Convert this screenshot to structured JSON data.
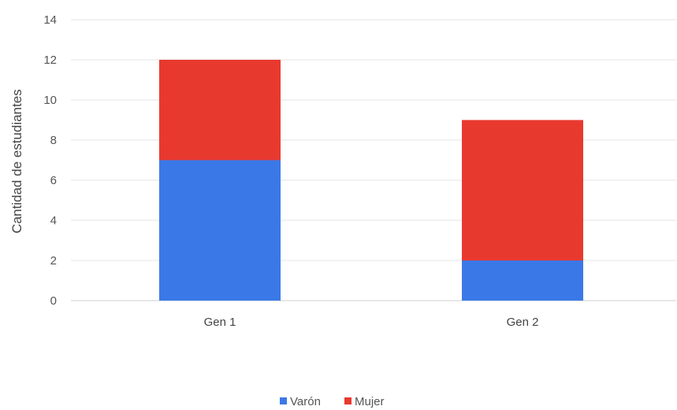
{
  "chart_data": {
    "type": "bar",
    "stacked": true,
    "categories": [
      "Gen 1",
      "Gen 2"
    ],
    "series": [
      {
        "name": "Varón",
        "values": [
          7,
          2
        ],
        "color": "#3b78e7"
      },
      {
        "name": "Mujer",
        "values": [
          5,
          7
        ],
        "color": "#e8392f"
      }
    ],
    "ylabel": "Cantidad de estudiantes",
    "ylim": [
      0,
      14
    ],
    "yticks": [
      0,
      2,
      4,
      6,
      8,
      10,
      12,
      14
    ],
    "grid": true,
    "legend_position": "bottom"
  }
}
